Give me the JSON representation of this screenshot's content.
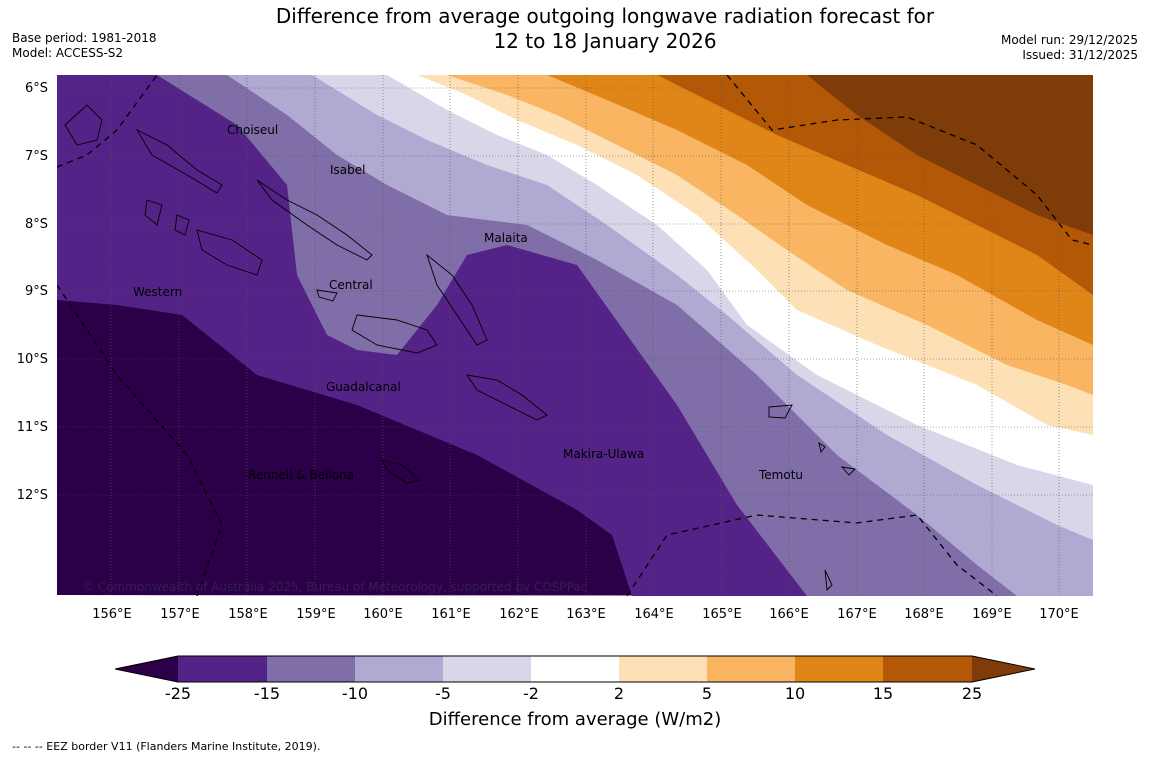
{
  "title": {
    "line1": "Difference from average outgoing longwave radiation forecast for",
    "line2": "12 to 18 January 2026"
  },
  "meta_left": {
    "base_period": "Base period: 1981-2018",
    "model": "Model: ACCESS-S2"
  },
  "meta_right": {
    "model_run": "Model run: 29/12/2025",
    "issued": "Issued: 31/12/2025"
  },
  "map": {
    "lat_labels": [
      "6°S",
      "7°S",
      "8°S",
      "9°S",
      "10°S",
      "11°S",
      "12°S"
    ],
    "lon_labels": [
      "156°E",
      "157°E",
      "158°E",
      "159°E",
      "160°E",
      "161°E",
      "162°E",
      "163°E",
      "164°E",
      "165°E",
      "166°E",
      "167°E",
      "168°E",
      "169°E",
      "170°E"
    ],
    "places": [
      "Choiseul",
      "Isabel",
      "Malaita",
      "Central",
      "Western",
      "Guadalcanal",
      "Makira-Ulawa",
      "Rennell & Bellona",
      "Temotu"
    ],
    "copyright": "© Commonwealth of Australia 2025, Bureau of Meteorology, supported by COSPPac"
  },
  "colorbar": {
    "ticks": [
      "-25",
      "-15",
      "-10",
      "-5",
      "-2",
      "2",
      "5",
      "10",
      "15",
      "25"
    ],
    "colors": [
      "#2b0048",
      "#542387",
      "#7f6ea8",
      "#b0a9d1",
      "#d8d7ea",
      "#ffffff",
      "#fde0b6",
      "#f9b561",
      "#e08619",
      "#b35806",
      "#7f3b08"
    ],
    "label": "Difference from average (W/m2)"
  },
  "legend_note": "--  --  -- EEZ border V11 (Flanders Marine Institute, 2019)."
}
